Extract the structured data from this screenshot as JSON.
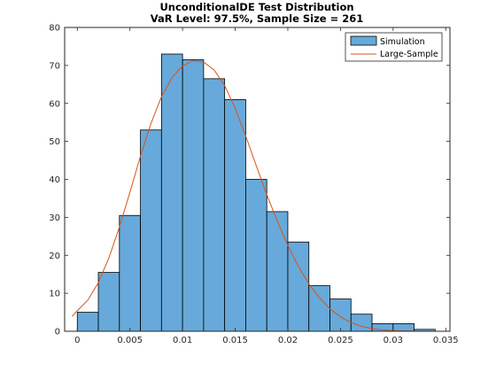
{
  "chart_data": {
    "type": "bar",
    "title": "UnconditionalDE Test Distribution",
    "subtitle": "VaR Level: 97.5%, Sample Size = 261",
    "xlim": [
      -0.0012,
      0.0354
    ],
    "ylim": [
      0,
      80
    ],
    "xticks": [
      0,
      0.005,
      0.01,
      0.015,
      0.02,
      0.025,
      0.03,
      0.035
    ],
    "xtick_labels": [
      "0",
      "0.005",
      "0.01",
      "0.015",
      "0.02",
      "0.025",
      "0.03",
      "0.035"
    ],
    "yticks": [
      0,
      10,
      20,
      30,
      40,
      50,
      60,
      70,
      80
    ],
    "ytick_labels": [
      "0",
      "10",
      "20",
      "30",
      "40",
      "50",
      "60",
      "70",
      "80"
    ],
    "bin_edges": [
      0,
      0.002,
      0.004,
      0.006,
      0.008,
      0.01,
      0.012,
      0.014,
      0.016,
      0.018,
      0.02,
      0.022,
      0.024,
      0.026,
      0.028,
      0.03,
      0.032,
      0.034
    ],
    "series": [
      {
        "name": "Simulation",
        "type": "histogram",
        "color": "#67A9DA",
        "values": [
          5,
          15.5,
          30.5,
          53,
          73,
          71.5,
          66.5,
          61,
          40,
          31.5,
          23.5,
          12,
          8.5,
          4.5,
          2,
          2,
          0.5
        ]
      },
      {
        "name": "Large-Sample",
        "type": "line",
        "color": "#D95319",
        "x": [
          -0.0005,
          0,
          0.001,
          0.002,
          0.003,
          0.004,
          0.005,
          0.006,
          0.007,
          0.008,
          0.009,
          0.01,
          0.011,
          0.012,
          0.013,
          0.014,
          0.015,
          0.016,
          0.017,
          0.018,
          0.019,
          0.02,
          0.021,
          0.022,
          0.023,
          0.024,
          0.025,
          0.026,
          0.027,
          0.028,
          0.029,
          0.03,
          0.031,
          0.032,
          0.033,
          0.0335
        ],
        "y": [
          3.9,
          5.4,
          8.2,
          12.8,
          19.3,
          27.4,
          36.6,
          46.1,
          54.7,
          61.8,
          66.8,
          69.9,
          71.2,
          70.9,
          68.8,
          64.7,
          58.7,
          51.4,
          43.6,
          36.0,
          29.0,
          22.6,
          17.1,
          12.5,
          8.8,
          5.9,
          3.8,
          2.3,
          1.3,
          0.7,
          0.35,
          0.17,
          0.08,
          0.03,
          0.01,
          0.0
        ]
      }
    ],
    "legend": {
      "position": "top-right",
      "entries": [
        "Simulation",
        "Large-Sample"
      ]
    },
    "grid": false
  }
}
